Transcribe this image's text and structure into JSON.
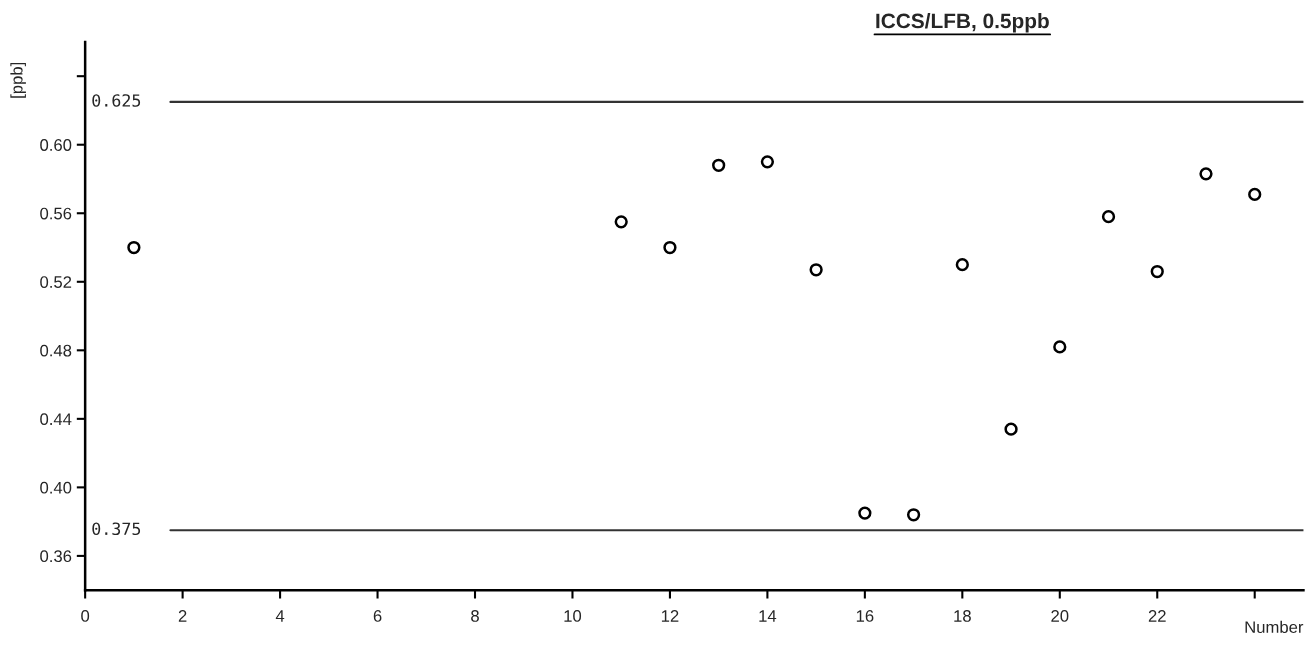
{
  "chart_data": {
    "type": "scatter",
    "title": "ICCS/LFB, 0.5ppb",
    "xlabel": "Number",
    "ylabel": "[ppb]",
    "x": [
      1,
      11,
      12,
      13,
      14,
      15,
      16,
      17,
      18,
      19,
      20,
      21,
      22,
      23,
      24
    ],
    "series": [
      {
        "color": "#000000",
        "values": [
          0.54,
          0.555,
          0.54,
          0.588,
          0.59,
          0.527,
          0.385,
          0.384,
          0.53,
          0.434,
          0.482,
          0.558,
          0.526,
          0.583,
          0.571
        ]
      }
    ],
    "marker": "circle",
    "xlim": [
      0,
      25
    ],
    "ylim": [
      0.34,
      0.66
    ],
    "xticks": [
      0,
      2,
      4,
      6,
      8,
      10,
      12,
      14,
      16,
      18,
      20,
      22,
      {
        "value": 24,
        "label": null
      }
    ],
    "yticks": [
      {
        "value": 0.36,
        "label": "0.36"
      },
      {
        "value": 0.4,
        "label": "0.40"
      },
      {
        "value": 0.44,
        "label": "0.44"
      },
      {
        "value": 0.48,
        "label": "0.48"
      },
      {
        "value": 0.52,
        "label": "0.52"
      },
      {
        "value": 0.56,
        "label": "0.56"
      },
      {
        "value": 0.6,
        "label": "0.60"
      },
      {
        "value": 0.64,
        "label": null
      }
    ],
    "ref_lines": [
      {
        "axis": "y",
        "value": 0.625,
        "label": "0.625",
        "color": "#333333"
      },
      {
        "axis": "y",
        "value": 0.375,
        "label": "0.375",
        "color": "#333333"
      }
    ],
    "grid": false,
    "legend": false
  }
}
